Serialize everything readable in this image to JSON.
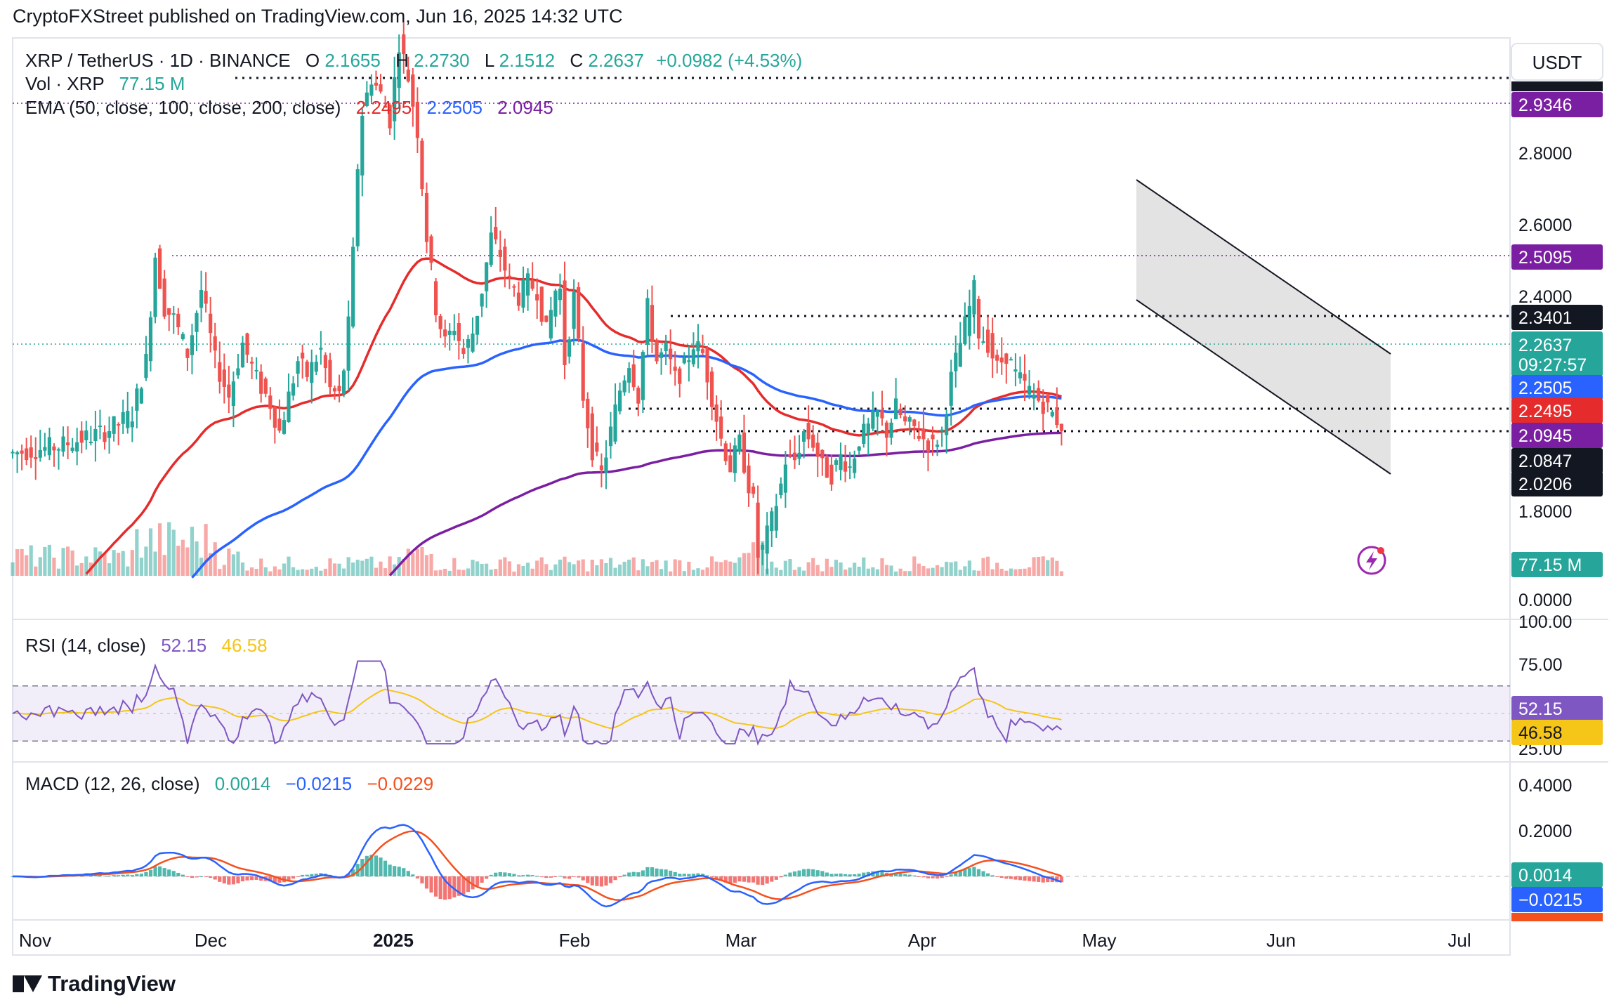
{
  "header": {
    "published": "CryptoFXStreet published on TradingView.com, Jun 16, 2025 14:32 UTC"
  },
  "footer": {
    "brand": "TradingView"
  },
  "legend": {
    "symbol": "XRP / TetherUS · 1D · BINANCE",
    "open_label": "O",
    "open": "2.1655",
    "high_label": "H",
    "high": "2.2730",
    "low_label": "L",
    "low": "2.1512",
    "close_label": "C",
    "close": "2.2637",
    "change": "+0.0982 (+4.53%)",
    "vol_label": "Vol · XRP",
    "vol": "77.15 M",
    "ema_label": "EMA (50, close, 100, close, 200, close)",
    "ema50": "2.2495",
    "ema100": "2.2505",
    "ema200": "2.0945"
  },
  "currency": "USDT",
  "colors": {
    "up": "#26a69a",
    "down": "#ef5350",
    "ema50": "#e52b2b",
    "ema100": "#2962ff",
    "ema200": "#7b1fa2",
    "rsi": "#7e57c2",
    "rsi_ma": "#f5c518",
    "macd": "#2962ff",
    "signal": "#f4511e",
    "channel_fill": "#d9d9d9",
    "last_price": "#26a69a"
  },
  "price_labels": {
    "ticks": [
      "2.8000",
      "2.6000",
      "2.4000",
      "1.8000",
      "0.0000"
    ],
    "tag_level_top": "2.9346",
    "tag_level_2": "2.5095",
    "tag_level_3": "2.3401",
    "tag_last": "2.2637",
    "tag_countdown": "09:27:57",
    "tag_ema100": "2.2505",
    "tag_ema50": "2.2495",
    "tag_ema200": "2.0945",
    "tag_support1": "2.0847",
    "tag_support2": "2.0206",
    "tag_volume": "77.15 M"
  },
  "rsi": {
    "label": "RSI (14, close)",
    "value": "52.15",
    "ma": "46.58",
    "ticks": [
      "100.00",
      "75.00",
      "25.00"
    ]
  },
  "macd": {
    "label": "MACD (12, 26, close)",
    "hist": "0.0014",
    "macd": "−0.0215",
    "signal": "−0.0229",
    "ticks": [
      "0.4000",
      "0.2000"
    ],
    "tag_hist": "0.0014",
    "tag_macd": "−0.0215"
  },
  "x_axis": {
    "labels": [
      "Nov",
      "Dec",
      "2025",
      "Feb",
      "Mar",
      "Apr",
      "May",
      "Jun",
      "Jul"
    ]
  },
  "chart_data": {
    "type": "candlestick",
    "title": "XRP / TetherUS · 1D · BINANCE",
    "x": [
      "2024-11-01",
      "2025-06-16"
    ],
    "x_ticks": [
      "Nov",
      "Dec",
      "2025",
      "Feb",
      "Mar",
      "Apr",
      "May",
      "Jun",
      "Jul"
    ],
    "y_ticks": [
      1.8,
      2.4,
      2.6,
      2.8
    ],
    "ylim": [
      1.8,
      3.0
    ],
    "horizontal_levels": [
      2.9346,
      2.5095,
      2.3401,
      2.0847,
      2.0206
    ],
    "last_close": 2.2637,
    "series": [
      {
        "name": "EMA 50",
        "last": 2.2495
      },
      {
        "name": "EMA 100",
        "last": 2.2505
      },
      {
        "name": "EMA 200",
        "last": 2.0945
      }
    ],
    "descending_channel": {
      "from": "2025-05-08",
      "to": "2025-06-17"
    },
    "rsi": {
      "value": 52.15,
      "ma": 46.58,
      "levels": [
        70,
        30
      ]
    },
    "macd": {
      "macd": -0.0215,
      "signal": -0.0229,
      "hist": 0.0014
    }
  }
}
